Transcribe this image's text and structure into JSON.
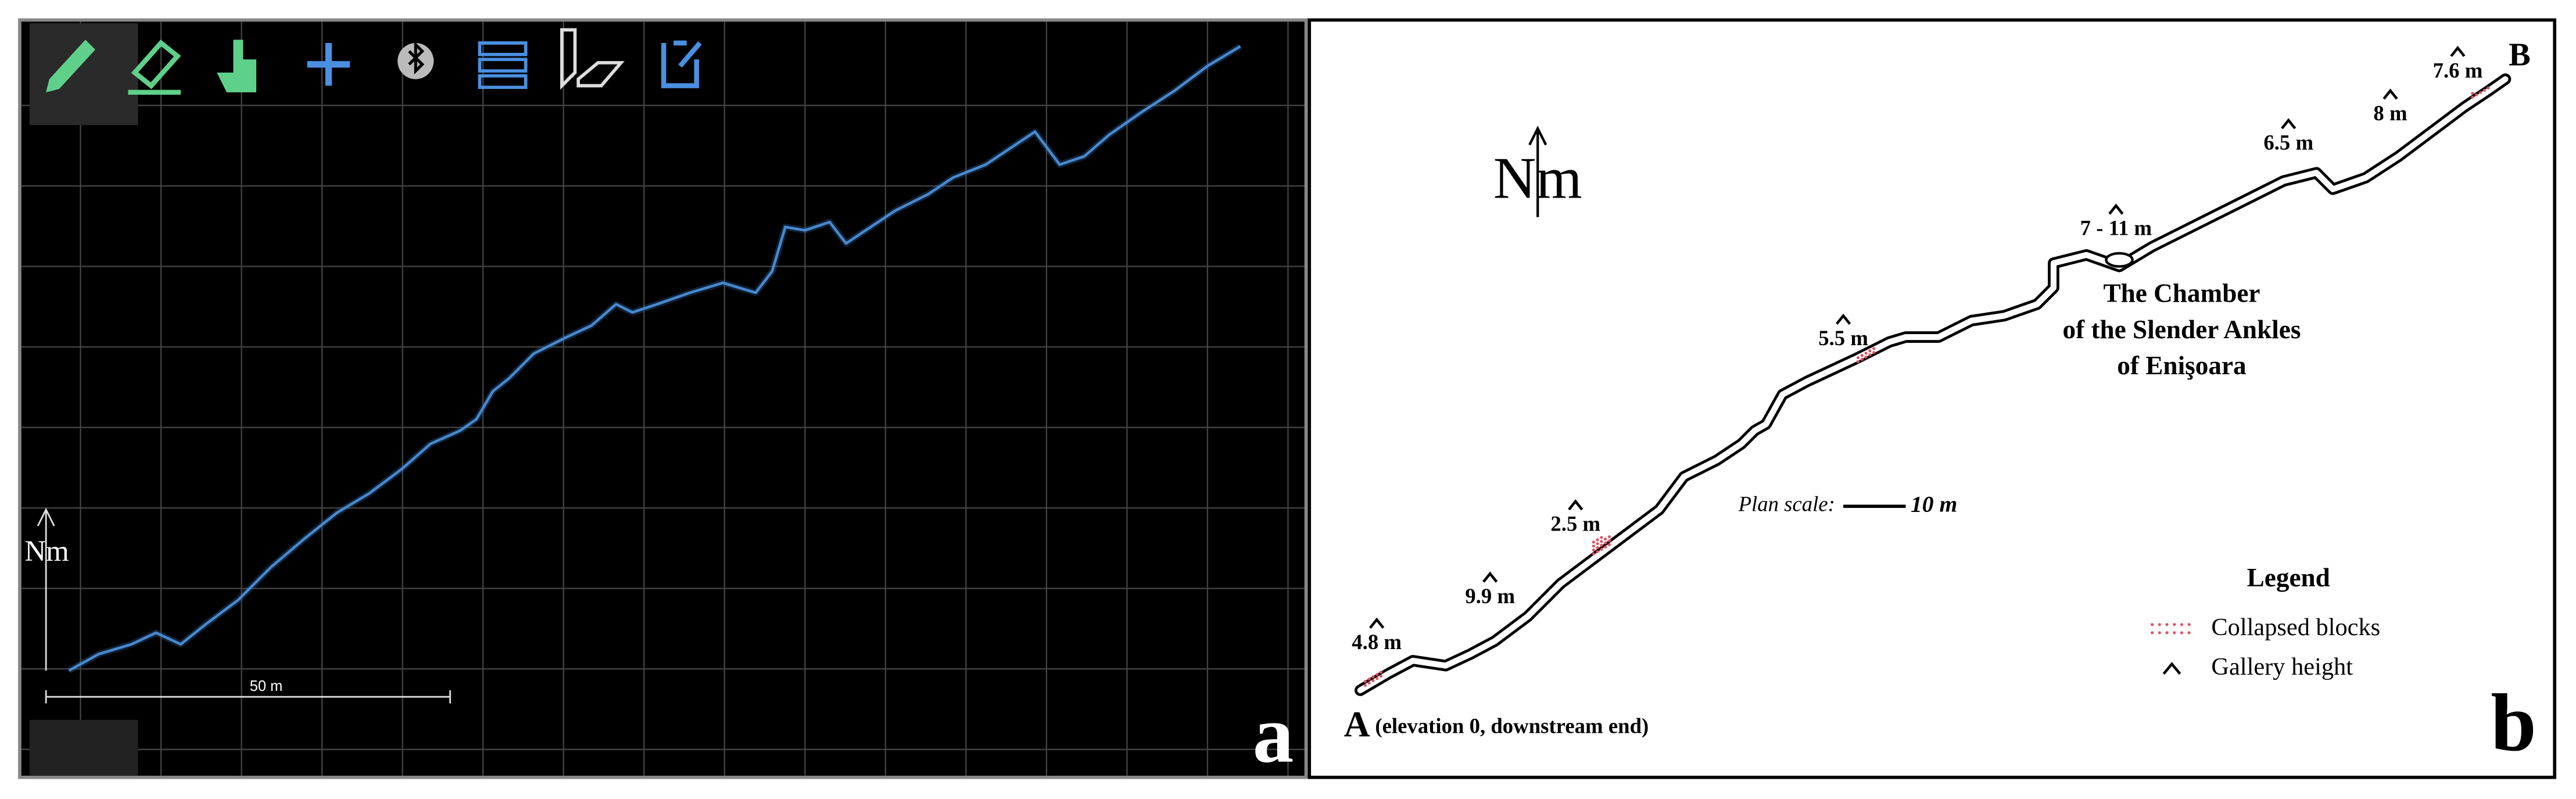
{
  "panel_a": {
    "label": "a",
    "north": "Nm",
    "scale_bar": "50 m"
  },
  "panel_b": {
    "label": "b",
    "north": "Nm",
    "end_a": "A",
    "end_a_note": "(elevation 0, downstream end)",
    "end_b": "B",
    "gallery_heights": [
      "4.8 m",
      "9.9 m",
      "2.5 m",
      "5.5 m",
      "7 - 11 m",
      "6.5 m",
      "8 m",
      "7.6 m"
    ],
    "chamber_name": [
      "The Chamber",
      "of the Slender Ankles",
      "of Enişoara"
    ],
    "plan_scale": {
      "label": "Plan scale:",
      "length": "10 m"
    },
    "legend": {
      "title": "Legend",
      "items": [
        "Collapsed blocks",
        "Gallery height"
      ]
    }
  }
}
